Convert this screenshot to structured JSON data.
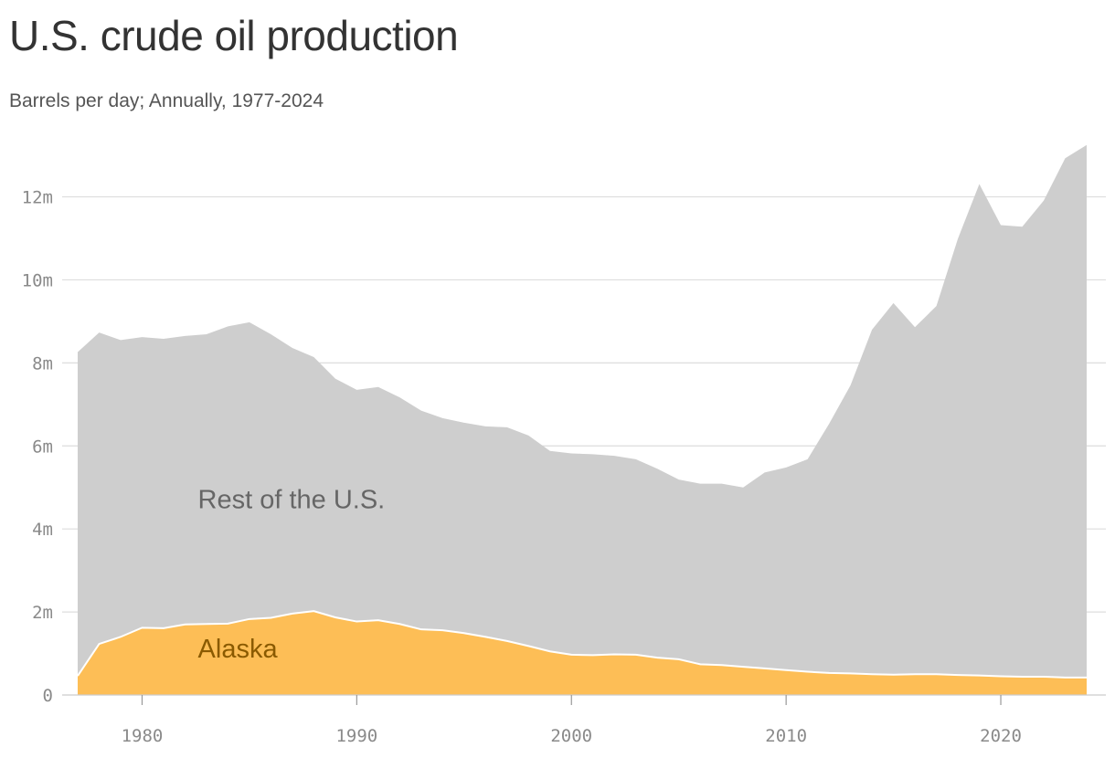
{
  "chart_data": {
    "type": "area",
    "stacked": true,
    "title": "U.S. crude oil production",
    "subtitle": "Barrels per day; Annually, 1977-2024",
    "xlabel": "",
    "ylabel": "",
    "xlim": [
      1977,
      2024
    ],
    "ylim": [
      0,
      13200000
    ],
    "x_ticks": [
      1980,
      1990,
      2000,
      2010,
      2020
    ],
    "y_ticks": [
      {
        "value": 0,
        "label": "0"
      },
      {
        "value": 2000000,
        "label": "2m"
      },
      {
        "value": 4000000,
        "label": "4m"
      },
      {
        "value": 6000000,
        "label": "6m"
      },
      {
        "value": 8000000,
        "label": "8m"
      },
      {
        "value": 10000000,
        "label": "10m"
      },
      {
        "value": 12000000,
        "label": "12m"
      }
    ],
    "grid": true,
    "x": [
      1977,
      1978,
      1979,
      1980,
      1981,
      1982,
      1983,
      1984,
      1985,
      1986,
      1987,
      1988,
      1989,
      1990,
      1991,
      1992,
      1993,
      1994,
      1995,
      1996,
      1997,
      1998,
      1999,
      2000,
      2001,
      2002,
      2003,
      2004,
      2005,
      2006,
      2007,
      2008,
      2009,
      2010,
      2011,
      2012,
      2013,
      2014,
      2015,
      2016,
      2017,
      2018,
      2019,
      2020,
      2021,
      2022,
      2023,
      2024
    ],
    "series": [
      {
        "name": "Alaska",
        "color": "#fdbe56",
        "label_color": "#8a5a00",
        "label_at": [
          1982.6,
          900000
        ],
        "values": [
          460000,
          1230000,
          1400000,
          1620000,
          1610000,
          1700000,
          1710000,
          1720000,
          1830000,
          1860000,
          1960000,
          2020000,
          1870000,
          1770000,
          1800000,
          1710000,
          1580000,
          1560000,
          1490000,
          1400000,
          1300000,
          1180000,
          1050000,
          970000,
          960000,
          980000,
          970000,
          900000,
          860000,
          740000,
          720000,
          680000,
          640000,
          600000,
          560000,
          530000,
          520000,
          500000,
          490000,
          500000,
          500000,
          480000,
          470000,
          450000,
          440000,
          440000,
          420000,
          420000
        ]
      },
      {
        "name": "Rest of the U.S.",
        "color": "#cecece",
        "label_color": "#666666",
        "label_at": [
          1982.6,
          4500000
        ],
        "values": [
          7800000,
          7500000,
          7150000,
          7000000,
          6970000,
          6950000,
          6980000,
          7160000,
          7150000,
          6830000,
          6400000,
          6120000,
          5750000,
          5580000,
          5620000,
          5460000,
          5270000,
          5110000,
          5070000,
          5070000,
          5150000,
          5070000,
          4830000,
          4850000,
          4840000,
          4780000,
          4710000,
          4550000,
          4330000,
          4350000,
          4370000,
          4320000,
          4720000,
          4880000,
          5120000,
          6000000,
          6940000,
          8300000,
          8950000,
          8360000,
          8870000,
          10510000,
          11840000,
          10870000,
          10840000,
          11470000,
          12510000,
          12830000
        ]
      }
    ]
  }
}
